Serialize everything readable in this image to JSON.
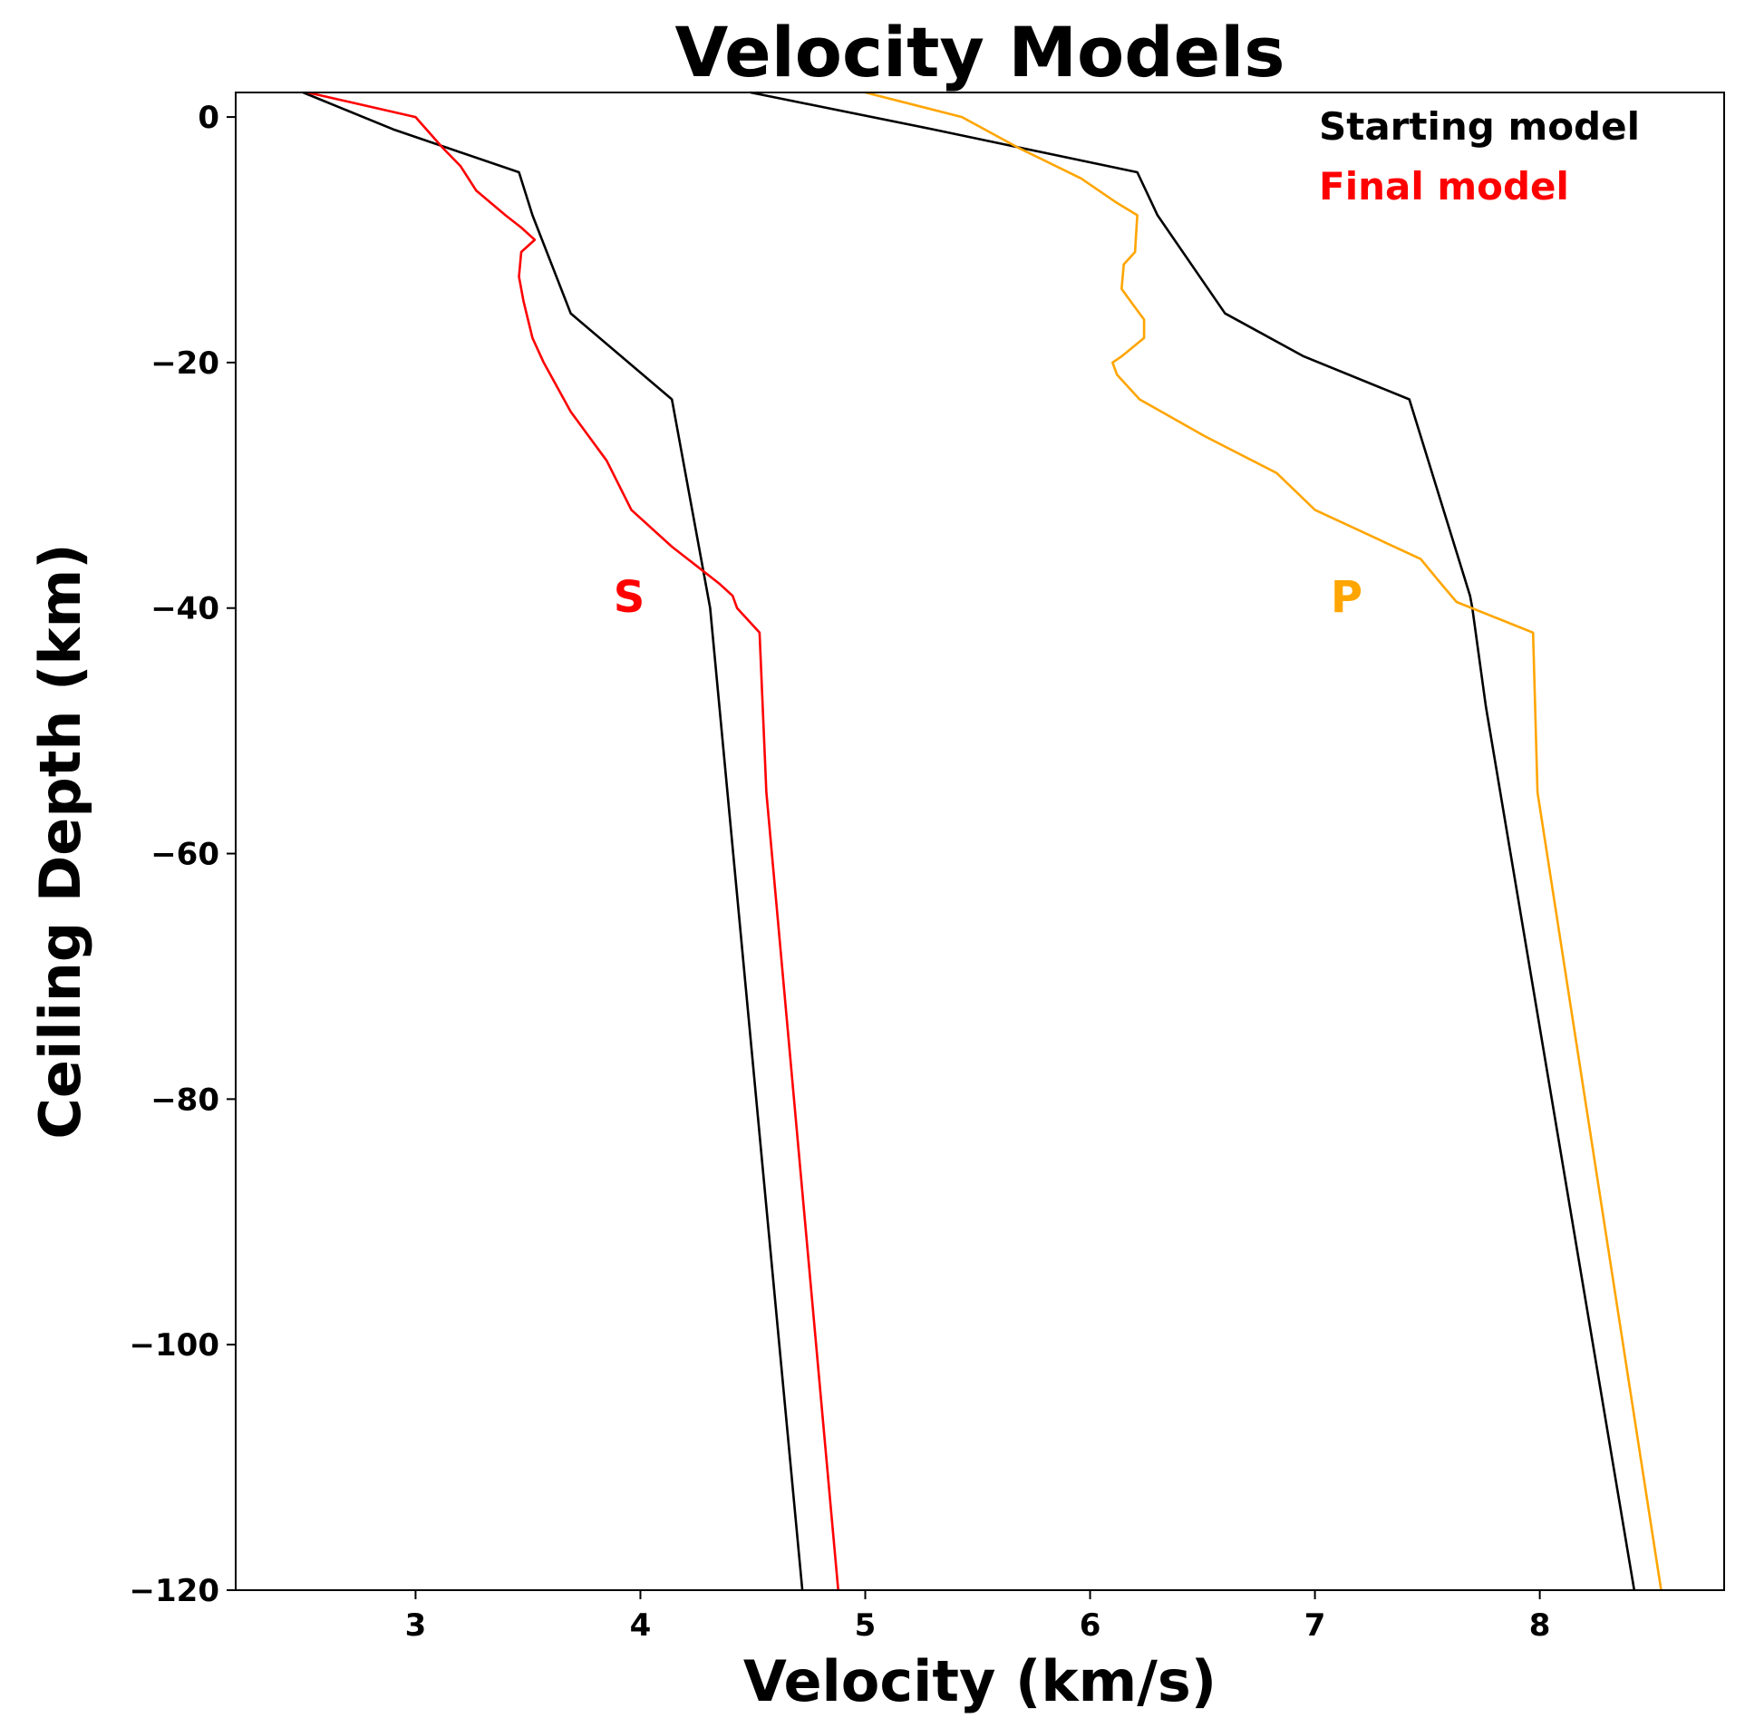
{
  "chart_data": {
    "type": "line",
    "title": "Velocity Models",
    "xlabel": "Velocity (km/s)",
    "ylabel": "Ceiling Depth (km)",
    "xlim": [
      2.2,
      8.82
    ],
    "ylim": [
      -120,
      2
    ],
    "xticks": [
      3,
      4,
      5,
      6,
      7,
      8
    ],
    "yticks": [
      0,
      -20,
      -40,
      -60,
      -80,
      -100,
      -120
    ],
    "xtick_labels": [
      "3",
      "4",
      "5",
      "6",
      "7",
      "8"
    ],
    "ytick_labels": [
      "0",
      "−20",
      "−40",
      "−60",
      "−80",
      "−100",
      "−120"
    ],
    "grid": false,
    "legend_position": "top-right",
    "legend": [
      {
        "label": "Starting model",
        "color": "#000000"
      },
      {
        "label": "Final model",
        "color": "#ff0000"
      }
    ],
    "annotations": [
      {
        "text": "S",
        "x": 3.88,
        "y": -39,
        "color": "#ff0000"
      },
      {
        "text": "P",
        "x": 7.07,
        "y": -39,
        "color": "#ffa500"
      }
    ],
    "series": [
      {
        "color": "#000000",
        "points": [
          [
            2.5,
            2
          ],
          [
            2.9,
            -1
          ],
          [
            3.46,
            -4.5
          ],
          [
            3.52,
            -8
          ],
          [
            3.69,
            -16
          ],
          [
            4.14,
            -23
          ],
          [
            4.31,
            -40
          ],
          [
            4.72,
            -120
          ]
        ]
      },
      {
        "color": "#ff0000",
        "points": [
          [
            2.52,
            2
          ],
          [
            3.0,
            0
          ],
          [
            3.12,
            -2.5
          ],
          [
            3.2,
            -4
          ],
          [
            3.27,
            -6
          ],
          [
            3.4,
            -8
          ],
          [
            3.47,
            -9
          ],
          [
            3.53,
            -10
          ],
          [
            3.47,
            -11
          ],
          [
            3.46,
            -13
          ],
          [
            3.48,
            -15
          ],
          [
            3.52,
            -18
          ],
          [
            3.57,
            -20
          ],
          [
            3.69,
            -24
          ],
          [
            3.85,
            -28
          ],
          [
            3.96,
            -32
          ],
          [
            4.14,
            -35
          ],
          [
            4.35,
            -38
          ],
          [
            4.41,
            -39
          ],
          [
            4.43,
            -40
          ],
          [
            4.53,
            -42
          ],
          [
            4.56,
            -55
          ],
          [
            4.88,
            -120
          ]
        ]
      },
      {
        "color": "#000000",
        "points": [
          [
            4.49,
            2
          ],
          [
            5.3,
            -1
          ],
          [
            6.21,
            -4.5
          ],
          [
            6.3,
            -8
          ],
          [
            6.6,
            -16
          ],
          [
            6.95,
            -19.5
          ],
          [
            7.42,
            -23
          ],
          [
            7.69,
            -39
          ],
          [
            7.7,
            -40
          ],
          [
            7.76,
            -48
          ],
          [
            8.42,
            -120
          ]
        ]
      },
      {
        "color": "#ffa500",
        "points": [
          [
            5.0,
            2
          ],
          [
            5.43,
            0
          ],
          [
            5.68,
            -2.5
          ],
          [
            5.96,
            -5
          ],
          [
            6.12,
            -7
          ],
          [
            6.21,
            -8
          ],
          [
            6.2,
            -11
          ],
          [
            6.15,
            -12
          ],
          [
            6.14,
            -14
          ],
          [
            6.2,
            -15.5
          ],
          [
            6.24,
            -16.5
          ],
          [
            6.24,
            -18
          ],
          [
            6.14,
            -19.5
          ],
          [
            6.1,
            -20
          ],
          [
            6.12,
            -21
          ],
          [
            6.22,
            -23
          ],
          [
            6.51,
            -26
          ],
          [
            6.83,
            -29
          ],
          [
            7.0,
            -32
          ],
          [
            7.47,
            -36
          ],
          [
            7.56,
            -38
          ],
          [
            7.63,
            -39.5
          ],
          [
            7.97,
            -42
          ],
          [
            7.99,
            -55
          ],
          [
            8.54,
            -120
          ]
        ]
      }
    ]
  }
}
